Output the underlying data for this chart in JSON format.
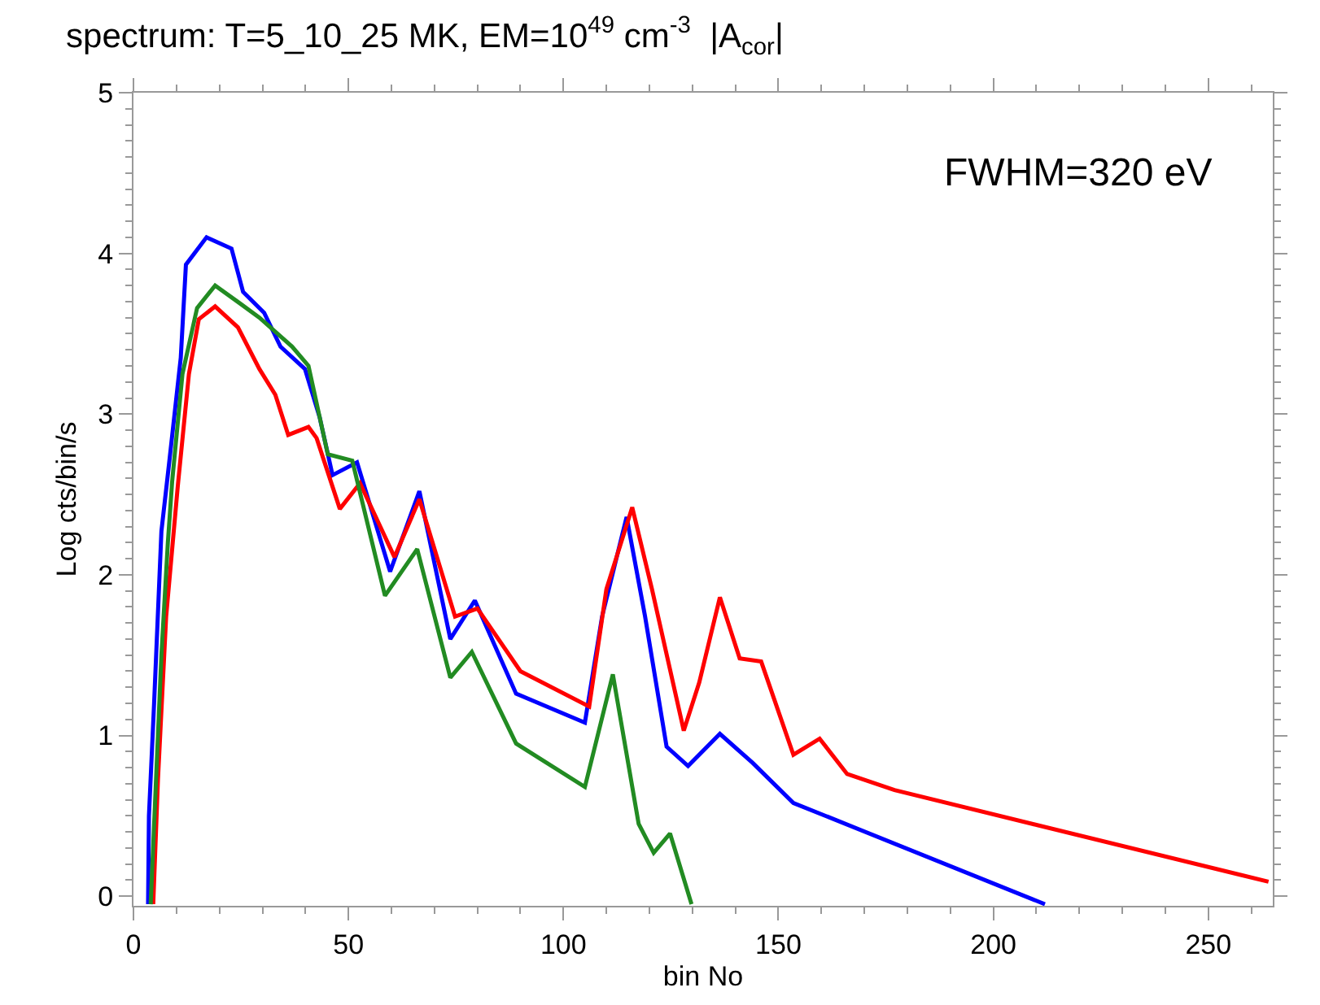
{
  "chart_data": {
    "type": "line",
    "title": "spectrum: T=5_10_25 MK, EM=10$^{49}$ cm$^{-3}$  |A$_{cor}$|",
    "xlabel": "bin No",
    "ylabel": "Log cts/bin/s",
    "annotations": [
      "FWHM=320 eV"
    ],
    "xlim": [
      0,
      265
    ],
    "ylim": [
      -0.06,
      5
    ],
    "xticks": [
      0,
      50,
      100,
      150,
      200,
      250
    ],
    "yticks": [
      0,
      1,
      2,
      3,
      4,
      5
    ],
    "grid": false,
    "marker": "none",
    "line_style": "solid",
    "series": [
      {
        "color": "#0000ff",
        "x": [
          3.4,
          3.6,
          4.8,
          6.5,
          8.4,
          11,
          12.2,
          17,
          22.8,
          25.5,
          30.4,
          34.2,
          39.9,
          43.3,
          46.3,
          52,
          59.7,
          66.5,
          73.7,
          79.4,
          89,
          105,
          109,
          114.7,
          119,
          124,
          129,
          136.4,
          144,
          153.5,
          212
        ],
        "values": [
          -0.05,
          0.5,
          1.2,
          2.27,
          2.72,
          3.35,
          3.93,
          4.1,
          4.03,
          3.76,
          3.63,
          3.42,
          3.28,
          2.98,
          2.62,
          2.7,
          2.02,
          2.52,
          1.6,
          1.84,
          1.26,
          1.08,
          1.74,
          2.36,
          1.74,
          0.93,
          0.81,
          1.01,
          0.83,
          0.58,
          -0.05
        ]
      },
      {
        "color": "#ff0000",
        "x": [
          4.6,
          5.7,
          7.6,
          10.3,
          12.9,
          15.2,
          19,
          24.3,
          29.3,
          33,
          36,
          40.7,
          42.6,
          48,
          52.7,
          60.7,
          66.5,
          74.8,
          80,
          90,
          106,
          110,
          116,
          120.6,
          128,
          131.6,
          136.4,
          141,
          146,
          153.5,
          159.6,
          166,
          177,
          264
        ],
        "values": [
          -0.05,
          0.73,
          1.74,
          2.55,
          3.25,
          3.59,
          3.67,
          3.54,
          3.28,
          3.12,
          2.87,
          2.92,
          2.85,
          2.41,
          2.57,
          2.11,
          2.47,
          1.74,
          1.79,
          1.4,
          1.18,
          1.91,
          2.42,
          1.91,
          1.03,
          1.33,
          1.86,
          1.48,
          1.46,
          0.88,
          0.98,
          0.76,
          0.66,
          0.09
        ]
      },
      {
        "color": "#228b22",
        "x": [
          4,
          6.5,
          8,
          9,
          11.4,
          14.8,
          19,
          24.7,
          29.3,
          36.9,
          40.7,
          45.2,
          50.9,
          58.5,
          66,
          73.7,
          78.7,
          89,
          105,
          111.5,
          117.5,
          121,
          124.8,
          129.8
        ],
        "values": [
          -0.05,
          1.5,
          2.2,
          2.58,
          3.25,
          3.66,
          3.8,
          3.69,
          3.6,
          3.42,
          3.3,
          2.75,
          2.71,
          1.87,
          2.16,
          1.36,
          1.52,
          0.95,
          0.68,
          1.38,
          0.45,
          0.27,
          0.39,
          -0.05
        ]
      }
    ]
  }
}
